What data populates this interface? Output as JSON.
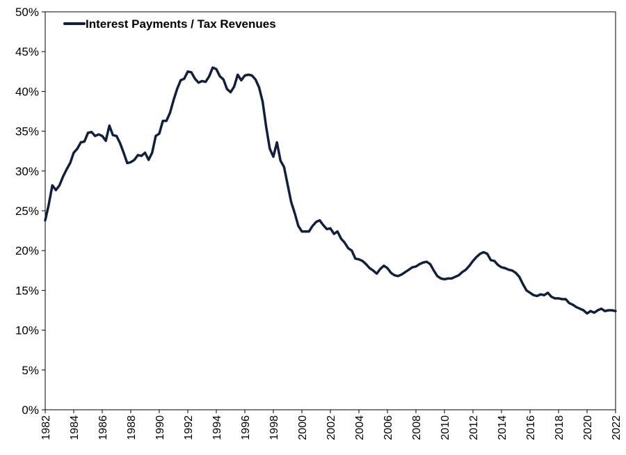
{
  "chart_data": {
    "type": "line",
    "title": "",
    "xlabel": "",
    "ylabel": "",
    "xlim": [
      1982,
      2022
    ],
    "ylim": [
      0,
      50
    ],
    "y_tick_labels": [
      "0%",
      "5%",
      "10%",
      "15%",
      "20%",
      "25%",
      "30%",
      "35%",
      "40%",
      "45%",
      "50%"
    ],
    "x_tick_labels": [
      "1982",
      "1984",
      "1986",
      "1988",
      "1990",
      "1992",
      "1994",
      "1996",
      "1998",
      "2000",
      "2002",
      "2004",
      "2006",
      "2008",
      "2010",
      "2012",
      "2014",
      "2016",
      "2018",
      "2020",
      "2022"
    ],
    "grid": false,
    "legend_position": "top-left",
    "series": [
      {
        "name": "Interest Payments / Tax Revenues",
        "color": "#0f1f3d",
        "x": [
          1982.0,
          1982.25,
          1982.5,
          1982.75,
          1983.0,
          1983.25,
          1983.5,
          1983.75,
          1984.0,
          1984.25,
          1984.5,
          1984.75,
          1985.0,
          1985.25,
          1985.5,
          1985.75,
          1986.0,
          1986.25,
          1986.5,
          1986.75,
          1987.0,
          1987.25,
          1987.5,
          1987.75,
          1988.0,
          1988.25,
          1988.5,
          1988.75,
          1989.0,
          1989.25,
          1989.5,
          1989.75,
          1990.0,
          1990.25,
          1990.5,
          1990.75,
          1991.0,
          1991.25,
          1991.5,
          1991.75,
          1992.0,
          1992.25,
          1992.5,
          1992.75,
          1993.0,
          1993.25,
          1993.5,
          1993.75,
          1994.0,
          1994.25,
          1994.5,
          1994.75,
          1995.0,
          1995.25,
          1995.5,
          1995.75,
          1996.0,
          1996.25,
          1996.5,
          1996.75,
          1997.0,
          1997.25,
          1997.5,
          1997.75,
          1998.0,
          1998.25,
          1998.5,
          1998.75,
          1999.0,
          1999.25,
          1999.5,
          1999.75,
          2000.0,
          2000.25,
          2000.5,
          2000.75,
          2001.0,
          2001.25,
          2001.5,
          2001.75,
          2002.0,
          2002.25,
          2002.5,
          2002.75,
          2003.0,
          2003.25,
          2003.5,
          2003.75,
          2004.0,
          2004.25,
          2004.5,
          2004.75,
          2005.0,
          2005.25,
          2005.5,
          2005.75,
          2006.0,
          2006.25,
          2006.5,
          2006.75,
          2007.0,
          2007.25,
          2007.5,
          2007.75,
          2008.0,
          2008.25,
          2008.5,
          2008.75,
          2009.0,
          2009.25,
          2009.5,
          2009.75,
          2010.0,
          2010.25,
          2010.5,
          2010.75,
          2011.0,
          2011.25,
          2011.5,
          2011.75,
          2012.0,
          2012.25,
          2012.5,
          2012.75,
          2013.0,
          2013.25,
          2013.5,
          2013.75,
          2014.0,
          2014.25,
          2014.5,
          2014.75,
          2015.0,
          2015.25,
          2015.5,
          2015.75,
          2016.0,
          2016.25,
          2016.5,
          2016.75,
          2017.0,
          2017.25,
          2017.5,
          2017.75,
          2018.0,
          2018.25,
          2018.5,
          2018.75,
          2019.0,
          2019.25,
          2019.5,
          2019.75,
          2020.0,
          2020.25,
          2020.5,
          2020.75,
          2021.0,
          2021.25,
          2021.5,
          2021.75,
          2022.0
        ],
        "values": [
          23.8,
          25.8,
          28.2,
          27.6,
          28.2,
          29.3,
          30.2,
          31.0,
          32.3,
          32.8,
          33.6,
          33.7,
          34.8,
          34.9,
          34.4,
          34.6,
          34.4,
          33.8,
          35.7,
          34.5,
          34.4,
          33.5,
          32.3,
          31.0,
          31.1,
          31.4,
          32.0,
          31.9,
          32.3,
          31.4,
          32.3,
          34.4,
          34.7,
          36.3,
          36.3,
          37.3,
          38.9,
          40.3,
          41.4,
          41.6,
          42.5,
          42.4,
          41.6,
          41.1,
          41.3,
          41.2,
          41.9,
          43.0,
          42.8,
          41.9,
          41.5,
          40.3,
          39.9,
          40.6,
          42.1,
          41.4,
          42.0,
          42.1,
          42.0,
          41.5,
          40.5,
          38.7,
          35.5,
          32.8,
          31.8,
          33.6,
          31.3,
          30.5,
          28.3,
          26.1,
          24.7,
          23.1,
          22.4,
          22.4,
          22.4,
          23.1,
          23.6,
          23.8,
          23.2,
          22.7,
          22.8,
          22.1,
          22.4,
          21.5,
          21.0,
          20.3,
          20.0,
          19.0,
          18.9,
          18.7,
          18.3,
          17.8,
          17.5,
          17.1,
          17.7,
          18.1,
          17.8,
          17.2,
          16.9,
          16.8,
          17.0,
          17.3,
          17.6,
          17.9,
          18.0,
          18.3,
          18.5,
          18.6,
          18.3,
          17.5,
          16.8,
          16.5,
          16.4,
          16.5,
          16.5,
          16.7,
          16.9,
          17.3,
          17.6,
          18.1,
          18.7,
          19.2,
          19.6,
          19.8,
          19.6,
          18.8,
          18.7,
          18.2,
          17.9,
          17.8,
          17.6,
          17.5,
          17.2,
          16.7,
          15.8,
          15.0,
          14.7,
          14.4,
          14.3,
          14.5,
          14.4,
          14.7,
          14.2,
          14.0,
          14.0,
          13.9,
          13.9,
          13.4,
          13.2,
          12.9,
          12.7,
          12.5,
          12.1,
          12.4,
          12.2,
          12.5,
          12.7,
          12.4,
          12.5,
          12.5,
          12.4
        ]
      }
    ]
  }
}
